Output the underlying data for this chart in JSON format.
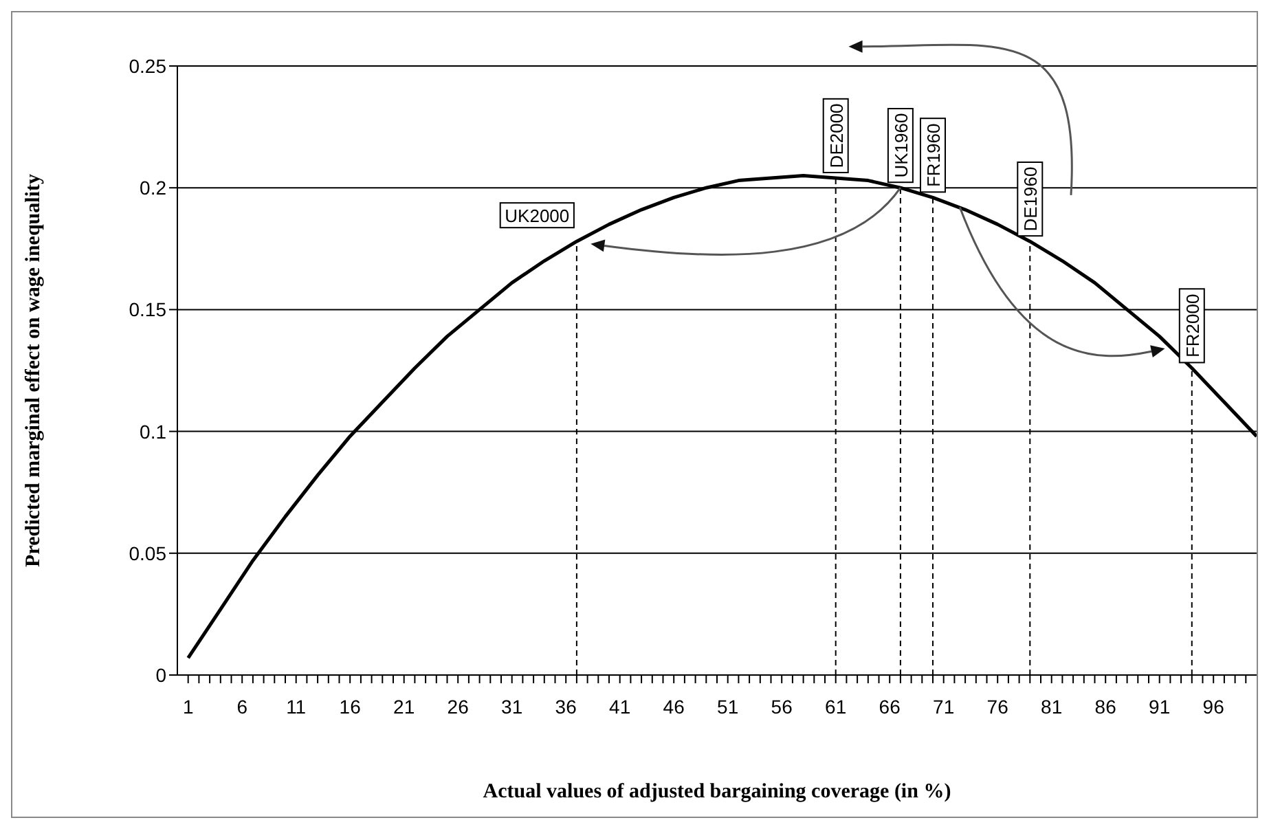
{
  "chart_data": {
    "type": "line",
    "xlabel": "Actual values of adjusted bargaining coverage (in %)",
    "ylabel": "Predicted marginal effect on wage inequality",
    "x": [
      1,
      4,
      7,
      10,
      13,
      16,
      19,
      22,
      25,
      28,
      31,
      34,
      37,
      40,
      43,
      46,
      49,
      52,
      55,
      58,
      61,
      64,
      67,
      70,
      73,
      76,
      79,
      82,
      85,
      88,
      91,
      94,
      97,
      100
    ],
    "series": [
      {
        "color": "#000000",
        "values": [
          0.007,
          0.027,
          0.047,
          0.065,
          0.082,
          0.098,
          0.112,
          0.126,
          0.139,
          0.15,
          0.161,
          0.17,
          0.178,
          0.185,
          0.191,
          0.196,
          0.2,
          0.203,
          0.204,
          0.205,
          0.204,
          0.203,
          0.2,
          0.196,
          0.191,
          0.185,
          0.178,
          0.17,
          0.161,
          0.15,
          0.139,
          0.126,
          0.112,
          0.098
        ]
      }
    ],
    "xlim": [
      0,
      100
    ],
    "ylim": [
      0,
      0.25
    ],
    "xticks": [
      1,
      {
        "value": 2,
        "label": null
      },
      {
        "value": 3,
        "label": null
      },
      {
        "value": 4,
        "label": null
      },
      {
        "value": 5,
        "label": null
      },
      6,
      {
        "value": 7,
        "label": null
      },
      {
        "value": 8,
        "label": null
      },
      {
        "value": 9,
        "label": null
      },
      {
        "value": 10,
        "label": null
      },
      11,
      {
        "value": 12,
        "label": null
      },
      {
        "value": 13,
        "label": null
      },
      {
        "value": 14,
        "label": null
      },
      {
        "value": 15,
        "label": null
      },
      16,
      {
        "value": 17,
        "label": null
      },
      {
        "value": 18,
        "label": null
      },
      {
        "value": 19,
        "label": null
      },
      {
        "value": 20,
        "label": null
      },
      21,
      {
        "value": 22,
        "label": null
      },
      {
        "value": 23,
        "label": null
      },
      {
        "value": 24,
        "label": null
      },
      {
        "value": 25,
        "label": null
      },
      26,
      {
        "value": 27,
        "label": null
      },
      {
        "value": 28,
        "label": null
      },
      {
        "value": 29,
        "label": null
      },
      {
        "value": 30,
        "label": null
      },
      31,
      {
        "value": 32,
        "label": null
      },
      {
        "value": 33,
        "label": null
      },
      {
        "value": 34,
        "label": null
      },
      {
        "value": 35,
        "label": null
      },
      36,
      {
        "value": 37,
        "label": null
      },
      {
        "value": 38,
        "label": null
      },
      {
        "value": 39,
        "label": null
      },
      {
        "value": 40,
        "label": null
      },
      41,
      {
        "value": 42,
        "label": null
      },
      {
        "value": 43,
        "label": null
      },
      {
        "value": 44,
        "label": null
      },
      {
        "value": 45,
        "label": null
      },
      46,
      {
        "value": 47,
        "label": null
      },
      {
        "value": 48,
        "label": null
      },
      {
        "value": 49,
        "label": null
      },
      {
        "value": 50,
        "label": null
      },
      51,
      {
        "value": 52,
        "label": null
      },
      {
        "value": 53,
        "label": null
      },
      {
        "value": 54,
        "label": null
      },
      {
        "value": 55,
        "label": null
      },
      56,
      {
        "value": 57,
        "label": null
      },
      {
        "value": 58,
        "label": null
      },
      {
        "value": 59,
        "label": null
      },
      {
        "value": 60,
        "label": null
      },
      61,
      {
        "value": 62,
        "label": null
      },
      {
        "value": 63,
        "label": null
      },
      {
        "value": 64,
        "label": null
      },
      {
        "value": 65,
        "label": null
      },
      66,
      {
        "value": 67,
        "label": null
      },
      {
        "value": 68,
        "label": null
      },
      {
        "value": 69,
        "label": null
      },
      {
        "value": 70,
        "label": null
      },
      71,
      {
        "value": 72,
        "label": null
      },
      {
        "value": 73,
        "label": null
      },
      {
        "value": 74,
        "label": null
      },
      {
        "value": 75,
        "label": null
      },
      76,
      {
        "value": 77,
        "label": null
      },
      {
        "value": 78,
        "label": null
      },
      {
        "value": 79,
        "label": null
      },
      {
        "value": 80,
        "label": null
      },
      81,
      {
        "value": 82,
        "label": null
      },
      {
        "value": 83,
        "label": null
      },
      {
        "value": 84,
        "label": null
      },
      {
        "value": 85,
        "label": null
      },
      86,
      {
        "value": 87,
        "label": null
      },
      {
        "value": 88,
        "label": null
      },
      {
        "value": 89,
        "label": null
      },
      {
        "value": 90,
        "label": null
      },
      91,
      {
        "value": 92,
        "label": null
      },
      {
        "value": 93,
        "label": null
      },
      {
        "value": 94,
        "label": null
      },
      {
        "value": 95,
        "label": null
      },
      96,
      {
        "value": 97,
        "label": null
      },
      {
        "value": 98,
        "label": null
      },
      {
        "value": 99,
        "label": null
      }
    ],
    "yticks": [
      0,
      0.05,
      0.1,
      0.15,
      0.2,
      0.25
    ],
    "grid": "y",
    "ref_lines": [
      {
        "axis": "x",
        "value": 37,
        "label": "UK2000",
        "color": "#000000",
        "line_style": "dashed"
      },
      {
        "axis": "x",
        "value": 61,
        "label": "DE2000",
        "color": "#000000",
        "line_style": "dashed"
      },
      {
        "axis": "x",
        "value": 67,
        "label": "UK1960",
        "color": "#000000",
        "line_style": "dashed"
      },
      {
        "axis": "x",
        "value": 70,
        "label": "FR1960",
        "color": "#000000",
        "line_style": "dashed"
      },
      {
        "axis": "x",
        "value": 79,
        "label": "DE1960",
        "color": "#000000",
        "line_style": "dashed"
      },
      {
        "axis": "x",
        "value": 94,
        "label": "FR2000",
        "color": "#000000",
        "line_style": "dashed"
      }
    ]
  }
}
